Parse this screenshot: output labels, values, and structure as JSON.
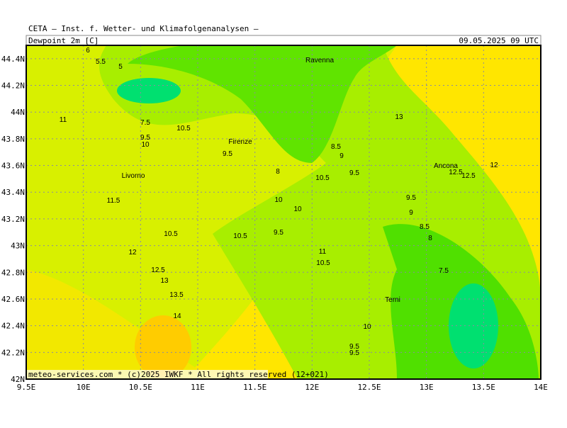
{
  "header": {
    "title": "CETA – Inst. f. Wetter- und Klimafolgenanalysen –",
    "variable": "Dewpoint_2m [C]",
    "valid_time": "09.05.2025 09 UTC"
  },
  "map": {
    "xlim": [
      9.5,
      14
    ],
    "ylim": [
      42,
      44.5
    ],
    "xticks": [
      {
        "value": 9.5,
        "label": "9.5E"
      },
      {
        "value": 10,
        "label": "10E"
      },
      {
        "value": 10.5,
        "label": "10.5E"
      },
      {
        "value": 11,
        "label": "11E"
      },
      {
        "value": 11.5,
        "label": "11.5E"
      },
      {
        "value": 12,
        "label": "12E"
      },
      {
        "value": 12.5,
        "label": "12.5E"
      },
      {
        "value": 13,
        "label": "13E"
      },
      {
        "value": 13.5,
        "label": "13.5E"
      },
      {
        "value": 14,
        "label": "14E"
      }
    ],
    "yticks": [
      {
        "value": 42,
        "label": "42N"
      },
      {
        "value": 42.2,
        "label": "42.2N"
      },
      {
        "value": 42.4,
        "label": "42.4N"
      },
      {
        "value": 42.6,
        "label": "42.6N"
      },
      {
        "value": 42.8,
        "label": "42.8N"
      },
      {
        "value": 43,
        "label": "43N"
      },
      {
        "value": 43.2,
        "label": "43.2N"
      },
      {
        "value": 43.4,
        "label": "43.4N"
      },
      {
        "value": 43.6,
        "label": "43.6N"
      },
      {
        "value": 43.8,
        "label": "43.8N"
      },
      {
        "value": 44,
        "label": "44N"
      },
      {
        "value": 44.2,
        "label": "44.2N"
      },
      {
        "value": 44.4,
        "label": "44.4N"
      }
    ],
    "cities": [
      "Ravenna",
      "Firenze",
      "Livorno",
      "Ancona",
      "Terni"
    ],
    "contour_labels": [
      6,
      5.5,
      5,
      7.5,
      9.5,
      10,
      10.5,
      9.5,
      8,
      8.5,
      9,
      9.5,
      10.5,
      13,
      12.5,
      12.5,
      12,
      11,
      11.5,
      10,
      10,
      9.5,
      9,
      8.5,
      8,
      10.5,
      10.5,
      9.5,
      12,
      11,
      10.5,
      7.5,
      12.5,
      13,
      13.5,
      14,
      10,
      9.5,
      9.5
    ],
    "credit": "meteo-services.com * (c)2025 IWKF * All rights reserved (12+021)"
  }
}
